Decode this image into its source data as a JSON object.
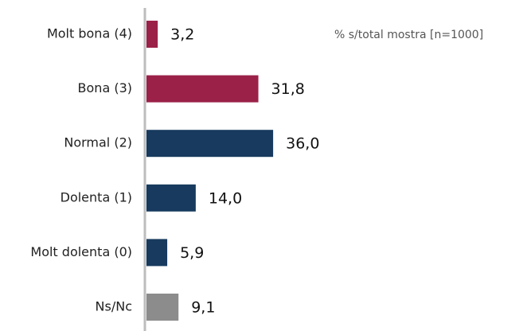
{
  "chart_data": {
    "type": "barh",
    "annotation": "% s/total mostra [n=1000]",
    "categories": [
      "Molt bona (4)",
      "Bona (3)",
      "Normal (2)",
      "Dolenta (1)",
      "Molt dolenta (0)",
      "Ns/Nc"
    ],
    "values": [
      3.2,
      31.8,
      36.0,
      14.0,
      5.9,
      9.1
    ],
    "value_labels": [
      "3,2",
      "31,8",
      "36,0",
      "14,0",
      "5,9",
      "9,1"
    ],
    "colors": [
      "#9b2148",
      "#9b2148",
      "#173a5e",
      "#173a5e",
      "#173a5e",
      "#8c8c8c"
    ]
  }
}
